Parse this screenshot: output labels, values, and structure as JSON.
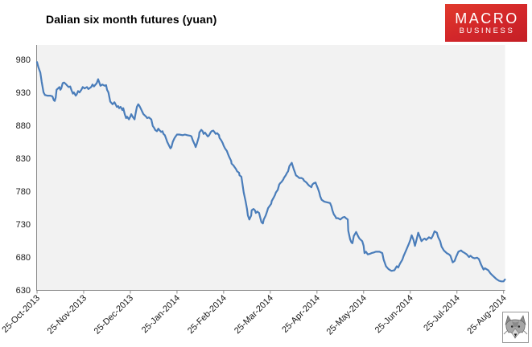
{
  "header": {
    "title": "Dalian six month futures (yuan)",
    "logo": {
      "line1": "MACRO",
      "line2": "BUSINESS",
      "bg_color": "#D2262A",
      "text_color": "#FFFFFF"
    }
  },
  "footer": {
    "wolf_icon": "wolf-face-logo"
  },
  "chart_data": {
    "type": "line",
    "title": "Dalian six month futures (yuan)",
    "xlabel": "",
    "ylabel": "",
    "x_tick_labels": [
      "25-Oct-2013",
      "25-Nov-2013",
      "25-Dec-2013",
      "25-Jan-2014",
      "25-Feb-2014",
      "25-Mar-2014",
      "25-Apr-2014",
      "25-May-2014",
      "25-Jun-2014",
      "25-Jul-2014",
      "25-Aug-2014"
    ],
    "y_ticks": [
      630,
      680,
      730,
      780,
      830,
      880,
      930,
      980
    ],
    "ylim": [
      630,
      980
    ],
    "xlim_months": [
      0,
      10.05
    ],
    "grid": false,
    "legend": false,
    "line_color": "#4A7DBA",
    "plot_bg": "#F2F2F2",
    "axis_color": "#8A8A8A",
    "label_color": "#1A1A1A",
    "series": [
      {
        "name": "Dalian six month futures (yuan)",
        "x_unit": "months since 25-Oct-2013",
        "points": [
          [
            0.0,
            976
          ],
          [
            0.03,
            968
          ],
          [
            0.07,
            960
          ],
          [
            0.1,
            946
          ],
          [
            0.14,
            930
          ],
          [
            0.17,
            926
          ],
          [
            0.22,
            925
          ],
          [
            0.28,
            925
          ],
          [
            0.33,
            924
          ],
          [
            0.36,
            918
          ],
          [
            0.38,
            917
          ],
          [
            0.4,
            922
          ],
          [
            0.42,
            934
          ],
          [
            0.45,
            936
          ],
          [
            0.48,
            938
          ],
          [
            0.5,
            934
          ],
          [
            0.52,
            936
          ],
          [
            0.55,
            944
          ],
          [
            0.58,
            945
          ],
          [
            0.61,
            943
          ],
          [
            0.65,
            940
          ],
          [
            0.68,
            938
          ],
          [
            0.71,
            939
          ],
          [
            0.74,
            933
          ],
          [
            0.77,
            928
          ],
          [
            0.79,
            930
          ],
          [
            0.83,
            925
          ],
          [
            0.85,
            927
          ],
          [
            0.88,
            932
          ],
          [
            0.91,
            930
          ],
          [
            0.95,
            934
          ],
          [
            0.98,
            938
          ],
          [
            1.02,
            936
          ],
          [
            1.07,
            938
          ],
          [
            1.1,
            935
          ],
          [
            1.16,
            938
          ],
          [
            1.19,
            942
          ],
          [
            1.22,
            939
          ],
          [
            1.28,
            944
          ],
          [
            1.31,
            950
          ],
          [
            1.33,
            946
          ],
          [
            1.36,
            940
          ],
          [
            1.4,
            942
          ],
          [
            1.45,
            940
          ],
          [
            1.48,
            941
          ],
          [
            1.5,
            934
          ],
          [
            1.53,
            930
          ],
          [
            1.57,
            916
          ],
          [
            1.62,
            912
          ],
          [
            1.66,
            915
          ],
          [
            1.69,
            911
          ],
          [
            1.71,
            908
          ],
          [
            1.74,
            909
          ],
          [
            1.76,
            906
          ],
          [
            1.79,
            908
          ],
          [
            1.83,
            903
          ],
          [
            1.85,
            906
          ],
          [
            1.88,
            897
          ],
          [
            1.91,
            891
          ],
          [
            1.93,
            893
          ],
          [
            1.97,
            889
          ],
          [
            2.0,
            893
          ],
          [
            2.02,
            897
          ],
          [
            2.05,
            893
          ],
          [
            2.09,
            889
          ],
          [
            2.1,
            893
          ],
          [
            2.14,
            908
          ],
          [
            2.17,
            912
          ],
          [
            2.19,
            910
          ],
          [
            2.22,
            906
          ],
          [
            2.26,
            900
          ],
          [
            2.28,
            897
          ],
          [
            2.31,
            895
          ],
          [
            2.34,
            893
          ],
          [
            2.36,
            891
          ],
          [
            2.4,
            892
          ],
          [
            2.43,
            890
          ],
          [
            2.45,
            889
          ],
          [
            2.48,
            879
          ],
          [
            2.52,
            875
          ],
          [
            2.53,
            873
          ],
          [
            2.57,
            871
          ],
          [
            2.6,
            875
          ],
          [
            2.62,
            873
          ],
          [
            2.66,
            870
          ],
          [
            2.69,
            871
          ],
          [
            2.71,
            867
          ],
          [
            2.74,
            865
          ],
          [
            2.78,
            857
          ],
          [
            2.79,
            855
          ],
          [
            2.83,
            849
          ],
          [
            2.86,
            845
          ],
          [
            2.88,
            847
          ],
          [
            2.91,
            855
          ],
          [
            2.95,
            861
          ],
          [
            2.97,
            863
          ],
          [
            3.0,
            866
          ],
          [
            3.05,
            866
          ],
          [
            3.12,
            865
          ],
          [
            3.17,
            866
          ],
          [
            3.22,
            865
          ],
          [
            3.29,
            864
          ],
          [
            3.31,
            863
          ],
          [
            3.34,
            857
          ],
          [
            3.38,
            851
          ],
          [
            3.4,
            847
          ],
          [
            3.43,
            853
          ],
          [
            3.47,
            863
          ],
          [
            3.48,
            869
          ],
          [
            3.52,
            873
          ],
          [
            3.55,
            871
          ],
          [
            3.57,
            867
          ],
          [
            3.6,
            869
          ],
          [
            3.64,
            865
          ],
          [
            3.66,
            863
          ],
          [
            3.69,
            865
          ],
          [
            3.72,
            869
          ],
          [
            3.74,
            871
          ],
          [
            3.78,
            872
          ],
          [
            3.81,
            869
          ],
          [
            3.83,
            867
          ],
          [
            3.86,
            868
          ],
          [
            3.9,
            865
          ],
          [
            3.91,
            861
          ],
          [
            3.95,
            857
          ],
          [
            3.98,
            853
          ],
          [
            4.0,
            849
          ],
          [
            4.03,
            845
          ],
          [
            4.07,
            841
          ],
          [
            4.09,
            837
          ],
          [
            4.12,
            832
          ],
          [
            4.16,
            826
          ],
          [
            4.17,
            822
          ],
          [
            4.21,
            819
          ],
          [
            4.24,
            816
          ],
          [
            4.26,
            814
          ],
          [
            4.29,
            810
          ],
          [
            4.33,
            808
          ],
          [
            4.34,
            804
          ],
          [
            4.38,
            802
          ],
          [
            4.41,
            788
          ],
          [
            4.43,
            778
          ],
          [
            4.47,
            765
          ],
          [
            4.5,
            753
          ],
          [
            4.52,
            743
          ],
          [
            4.55,
            737
          ],
          [
            4.59,
            743
          ],
          [
            4.6,
            751
          ],
          [
            4.64,
            753
          ],
          [
            4.67,
            751
          ],
          [
            4.69,
            747
          ],
          [
            4.72,
            749
          ],
          [
            4.76,
            747
          ],
          [
            4.78,
            741
          ],
          [
            4.81,
            733
          ],
          [
            4.84,
            731
          ],
          [
            4.86,
            737
          ],
          [
            4.9,
            743
          ],
          [
            4.93,
            749
          ],
          [
            4.95,
            754
          ],
          [
            4.98,
            757
          ],
          [
            5.02,
            761
          ],
          [
            5.03,
            765
          ],
          [
            5.07,
            770
          ],
          [
            5.1,
            774
          ],
          [
            5.12,
            778
          ],
          [
            5.16,
            782
          ],
          [
            5.19,
            790
          ],
          [
            5.21,
            792
          ],
          [
            5.24,
            794
          ],
          [
            5.28,
            798
          ],
          [
            5.29,
            800
          ],
          [
            5.33,
            804
          ],
          [
            5.36,
            808
          ],
          [
            5.38,
            810
          ],
          [
            5.41,
            818
          ],
          [
            5.46,
            823
          ],
          [
            5.5,
            814
          ],
          [
            5.53,
            808
          ],
          [
            5.55,
            804
          ],
          [
            5.59,
            802
          ],
          [
            5.62,
            800
          ],
          [
            5.67,
            800
          ],
          [
            5.71,
            798
          ],
          [
            5.72,
            796
          ],
          [
            5.76,
            794
          ],
          [
            5.79,
            792
          ],
          [
            5.81,
            790
          ],
          [
            5.84,
            788
          ],
          [
            5.88,
            786
          ],
          [
            5.9,
            790
          ],
          [
            5.93,
            792
          ],
          [
            5.97,
            793
          ],
          [
            5.98,
            791
          ],
          [
            6.02,
            784
          ],
          [
            6.05,
            778
          ],
          [
            6.07,
            772
          ],
          [
            6.1,
            767
          ],
          [
            6.14,
            765
          ],
          [
            6.16,
            764
          ],
          [
            6.22,
            763
          ],
          [
            6.28,
            762
          ],
          [
            6.31,
            757
          ],
          [
            6.33,
            751
          ],
          [
            6.36,
            745
          ],
          [
            6.4,
            741
          ],
          [
            6.41,
            739
          ],
          [
            6.45,
            739
          ],
          [
            6.5,
            737
          ],
          [
            6.55,
            740
          ],
          [
            6.59,
            741
          ],
          [
            6.62,
            739
          ],
          [
            6.66,
            737
          ],
          [
            6.67,
            720
          ],
          [
            6.71,
            707
          ],
          [
            6.74,
            702
          ],
          [
            6.76,
            701
          ],
          [
            6.79,
            712
          ],
          [
            6.84,
            718
          ],
          [
            6.88,
            712
          ],
          [
            6.91,
            708
          ],
          [
            6.97,
            704
          ],
          [
            7.0,
            697
          ],
          [
            7.02,
            686
          ],
          [
            7.05,
            688
          ],
          [
            7.09,
            684
          ],
          [
            7.14,
            685
          ],
          [
            7.17,
            686
          ],
          [
            7.22,
            687
          ],
          [
            7.26,
            688
          ],
          [
            7.31,
            688
          ],
          [
            7.34,
            688
          ],
          [
            7.4,
            686
          ],
          [
            7.43,
            676
          ],
          [
            7.48,
            666
          ],
          [
            7.53,
            662
          ],
          [
            7.57,
            660
          ],
          [
            7.6,
            659
          ],
          [
            7.66,
            660
          ],
          [
            7.71,
            666
          ],
          [
            7.74,
            664
          ],
          [
            7.78,
            670
          ],
          [
            7.83,
            676
          ],
          [
            7.86,
            682
          ],
          [
            7.91,
            690
          ],
          [
            7.97,
            700
          ],
          [
            8.0,
            706
          ],
          [
            8.03,
            713
          ],
          [
            8.07,
            706
          ],
          [
            8.1,
            697
          ],
          [
            8.14,
            708
          ],
          [
            8.17,
            717
          ],
          [
            8.21,
            710
          ],
          [
            8.24,
            704
          ],
          [
            8.28,
            707
          ],
          [
            8.31,
            708
          ],
          [
            8.34,
            706
          ],
          [
            8.4,
            710
          ],
          [
            8.45,
            708
          ],
          [
            8.48,
            712
          ],
          [
            8.52,
            719
          ],
          [
            8.57,
            717
          ],
          [
            8.6,
            710
          ],
          [
            8.64,
            704
          ],
          [
            8.67,
            696
          ],
          [
            8.72,
            690
          ],
          [
            8.78,
            686
          ],
          [
            8.83,
            684
          ],
          [
            8.86,
            682
          ],
          [
            8.91,
            672
          ],
          [
            8.95,
            674
          ],
          [
            8.98,
            680
          ],
          [
            9.03,
            688
          ],
          [
            9.09,
            690
          ],
          [
            9.12,
            688
          ],
          [
            9.17,
            686
          ],
          [
            9.21,
            684
          ],
          [
            9.26,
            680
          ],
          [
            9.29,
            682
          ],
          [
            9.34,
            679
          ],
          [
            9.38,
            678
          ],
          [
            9.43,
            679
          ],
          [
            9.47,
            677
          ],
          [
            9.52,
            668
          ],
          [
            9.57,
            661
          ],
          [
            9.6,
            663
          ],
          [
            9.67,
            660
          ],
          [
            9.72,
            655
          ],
          [
            9.78,
            651
          ],
          [
            9.84,
            647
          ],
          [
            9.9,
            644
          ],
          [
            9.95,
            643
          ],
          [
            10.0,
            643
          ],
          [
            10.03,
            646
          ]
        ]
      }
    ]
  }
}
